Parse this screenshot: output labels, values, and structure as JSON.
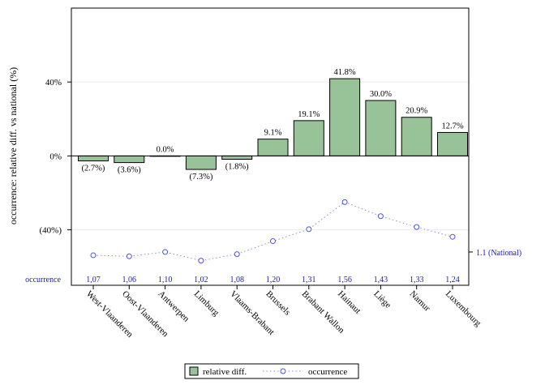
{
  "chart_data": {
    "type": "bar",
    "ylabel": "occurrence: relative diff. vs national (%)",
    "ylim": [
      -70,
      80
    ],
    "yticks": [
      40,
      0,
      -40
    ],
    "ytick_labels": [
      "40%",
      "0%",
      "(40%)"
    ],
    "grid": "horizontal",
    "categories": [
      "West-Vlaanderen",
      "Oost-Vlaanderen",
      "Antwerpen",
      "Limburg",
      "Vlaams-Brabant",
      "Brussels",
      "Brabant Wallon",
      "Hainaut",
      "Liège",
      "Namur",
      "Luxembourg"
    ],
    "series": [
      {
        "name": "relative diff.",
        "kind": "bar",
        "color": "#98c398",
        "values": [
          -2.7,
          -3.6,
          0.0,
          -7.3,
          -1.8,
          9.1,
          19.1,
          41.8,
          30.0,
          20.9,
          12.7
        ],
        "labels": [
          "(2.7%)",
          "(3.6%)",
          "0.0%",
          "(7.3%)",
          "(1.8%)",
          "9.1%",
          "19.1%",
          "41.8%",
          "30.0%",
          "20.9%",
          "12.7%"
        ]
      },
      {
        "name": "occurrence",
        "kind": "line",
        "color": "#5050d8",
        "values": [
          1.07,
          1.06,
          1.1,
          1.02,
          1.08,
          1.2,
          1.31,
          1.56,
          1.43,
          1.33,
          1.24
        ],
        "labels": [
          "1,07",
          "1,06",
          "1,10",
          "1,02",
          "1,08",
          "1,20",
          "1,31",
          "1,56",
          "1,43",
          "1,33",
          "1,24"
        ]
      }
    ],
    "secondary_axis": {
      "range": [
        0.98,
        1.6
      ],
      "reference_value": 1.1,
      "reference_label": "1.1 (National)"
    },
    "occurrence_row_label": "occurrence",
    "legend": {
      "placement": "bottom",
      "items": [
        "relative diff.",
        "occurrence"
      ]
    }
  }
}
